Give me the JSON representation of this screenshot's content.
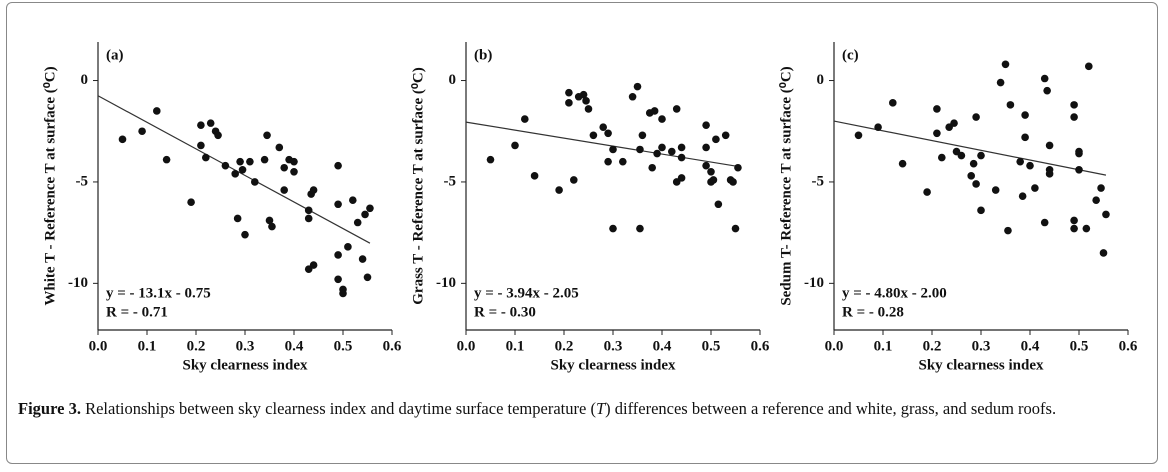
{
  "chart_data": [
    {
      "type": "scatter",
      "panel": "(a)",
      "ylabel": "White T - Reference T at surface (⁰C)",
      "xlabel": "Sky clearness index",
      "xlim": [
        0,
        0.6
      ],
      "xticks": [
        {
          "value": 0,
          "label": "0.0"
        },
        {
          "value": 0.1,
          "label": "0.1"
        },
        {
          "value": 0.2,
          "label": "0.2"
        },
        {
          "value": 0.3,
          "label": "0.3"
        },
        {
          "value": 0.4,
          "label": "0.4"
        },
        {
          "value": 0.5,
          "label": "0.5"
        },
        {
          "value": 0.6,
          "label": "0.6"
        }
      ],
      "ylim": [
        -12.3,
        1.9
      ],
      "yticks": [
        -10,
        -5,
        0
      ],
      "color": "#111111",
      "x": [
        0.05,
        0.09,
        0.12,
        0.14,
        0.19,
        0.21,
        0.21,
        0.22,
        0.23,
        0.24,
        0.245,
        0.26,
        0.28,
        0.285,
        0.29,
        0.295,
        0.3,
        0.31,
        0.32,
        0.34,
        0.345,
        0.35,
        0.355,
        0.37,
        0.38,
        0.38,
        0.39,
        0.4,
        0.4,
        0.43,
        0.43,
        0.435,
        0.44,
        0.44,
        0.43,
        0.49,
        0.49,
        0.49,
        0.49,
        0.5,
        0.5,
        0.51,
        0.52,
        0.53,
        0.54,
        0.545,
        0.55,
        0.555
      ],
      "values": [
        -2.9,
        -2.5,
        -1.5,
        -3.9,
        -6.0,
        -2.2,
        -3.2,
        -3.8,
        -2.1,
        -2.5,
        -2.7,
        -4.2,
        -4.6,
        -6.8,
        -4.0,
        -4.4,
        -7.6,
        -4.0,
        -5.0,
        -3.9,
        -2.7,
        -6.9,
        -7.2,
        -3.3,
        -4.3,
        -5.4,
        -3.9,
        -4.5,
        -4.0,
        -6.8,
        -9.3,
        -5.6,
        -9.1,
        -5.4,
        -6.4,
        -4.2,
        -6.1,
        -8.6,
        -9.8,
        -10.3,
        -10.5,
        -8.2,
        -5.9,
        -7.0,
        -8.8,
        -6.6,
        -9.7,
        -6.3
      ],
      "fit": {
        "slope": -13.1,
        "intercept": -0.75,
        "equation": "y = - 13.1x - 0.75",
        "r": "R = - 0.71"
      }
    },
    {
      "type": "scatter",
      "panel": "(b)",
      "ylabel": "Grass T - Reference T at surface (⁰C)",
      "xlabel": "Sky clearness index",
      "xlim": [
        0,
        0.6
      ],
      "xticks": [
        {
          "value": 0,
          "label": "0.0"
        },
        {
          "value": 0.1,
          "label": "0.1"
        },
        {
          "value": 0.2,
          "label": "0.2"
        },
        {
          "value": 0.3,
          "label": "0.3"
        },
        {
          "value": 0.4,
          "label": "0.4"
        },
        {
          "value": 0.5,
          "label": "0.5"
        },
        {
          "value": 0.6,
          "label": "0.6"
        }
      ],
      "ylim": [
        -12.3,
        1.9
      ],
      "yticks": [
        -10,
        -5,
        0
      ],
      "color": "#111111",
      "x": [
        0.05,
        0.1,
        0.12,
        0.14,
        0.19,
        0.21,
        0.21,
        0.22,
        0.23,
        0.24,
        0.245,
        0.25,
        0.26,
        0.28,
        0.29,
        0.29,
        0.3,
        0.3,
        0.32,
        0.34,
        0.35,
        0.355,
        0.355,
        0.36,
        0.375,
        0.38,
        0.385,
        0.39,
        0.4,
        0.4,
        0.42,
        0.43,
        0.43,
        0.44,
        0.44,
        0.44,
        0.49,
        0.49,
        0.49,
        0.5,
        0.5,
        0.505,
        0.51,
        0.515,
        0.53,
        0.54,
        0.545,
        0.55,
        0.555
      ],
      "values": [
        -3.9,
        -3.2,
        -1.9,
        -4.7,
        -5.4,
        -0.6,
        -1.1,
        -4.9,
        -0.8,
        -0.7,
        -1.0,
        -1.4,
        -2.7,
        -2.3,
        -4.0,
        -2.6,
        -7.3,
        -3.4,
        -4.0,
        -0.8,
        -0.3,
        -3.4,
        -7.3,
        -2.7,
        -1.6,
        -4.3,
        -1.5,
        -3.6,
        -1.9,
        -3.3,
        -3.5,
        -1.4,
        -5.0,
        -3.8,
        -3.3,
        -4.8,
        -2.2,
        -3.3,
        -4.2,
        -5.0,
        -4.5,
        -4.9,
        -2.9,
        -6.1,
        -2.7,
        -4.9,
        -5.0,
        -7.3,
        -4.3
      ],
      "fit": {
        "slope": -3.94,
        "intercept": -2.05,
        "equation": "y = - 3.94x - 2.05",
        "r": "R = - 0.30"
      }
    },
    {
      "type": "scatter",
      "panel": "(c)",
      "ylabel": "Sedum T- Reference T at surface (⁰C)",
      "xlabel": "Sky clearness index",
      "xlim": [
        0,
        0.6
      ],
      "xticks": [
        {
          "value": 0,
          "label": "0.0"
        },
        {
          "value": 0.1,
          "label": "0.1"
        },
        {
          "value": 0.2,
          "label": "0.2"
        },
        {
          "value": 0.3,
          "label": "0.3"
        },
        {
          "value": 0.4,
          "label": "0.4"
        },
        {
          "value": 0.5,
          "label": "0.5"
        },
        {
          "value": 0.6,
          "label": "0.6"
        }
      ],
      "ylim": [
        -12.3,
        1.9
      ],
      "yticks": [
        -10,
        -5,
        0
      ],
      "color": "#111111",
      "x": [
        0.05,
        0.09,
        0.12,
        0.14,
        0.19,
        0.21,
        0.21,
        0.22,
        0.235,
        0.245,
        0.25,
        0.26,
        0.28,
        0.285,
        0.29,
        0.29,
        0.3,
        0.3,
        0.33,
        0.34,
        0.35,
        0.355,
        0.36,
        0.38,
        0.385,
        0.39,
        0.39,
        0.4,
        0.41,
        0.43,
        0.43,
        0.435,
        0.44,
        0.44,
        0.44,
        0.49,
        0.49,
        0.49,
        0.49,
        0.5,
        0.5,
        0.5,
        0.515,
        0.52,
        0.535,
        0.545,
        0.55,
        0.555
      ],
      "values": [
        -2.7,
        -2.3,
        -1.1,
        -4.1,
        -5.5,
        -1.4,
        -2.6,
        -3.8,
        -2.3,
        -2.1,
        -3.5,
        -3.7,
        -4.7,
        -4.1,
        -5.1,
        -1.8,
        -6.4,
        -3.7,
        -5.4,
        -0.1,
        0.8,
        -7.4,
        -1.2,
        -4.0,
        -5.7,
        -2.8,
        -1.7,
        -4.2,
        -5.3,
        -7.0,
        0.1,
        -0.5,
        -3.2,
        -4.4,
        -4.6,
        -1.2,
        -1.8,
        -6.9,
        -7.3,
        -3.6,
        -3.5,
        -4.4,
        -7.3,
        0.7,
        -5.9,
        -5.3,
        -8.5,
        -6.6
      ],
      "fit": {
        "slope": -4.8,
        "intercept": -2.0,
        "equation": "y = - 4.80x - 2.00",
        "r": "R = - 0.28"
      }
    }
  ],
  "caption": {
    "label": "Figure 3.",
    "text1": "Relationships between sky clearness index and daytime surface temperature (",
    "symbol": "T",
    "text2": ") differences between a reference and white, grass, and sedum roofs."
  }
}
